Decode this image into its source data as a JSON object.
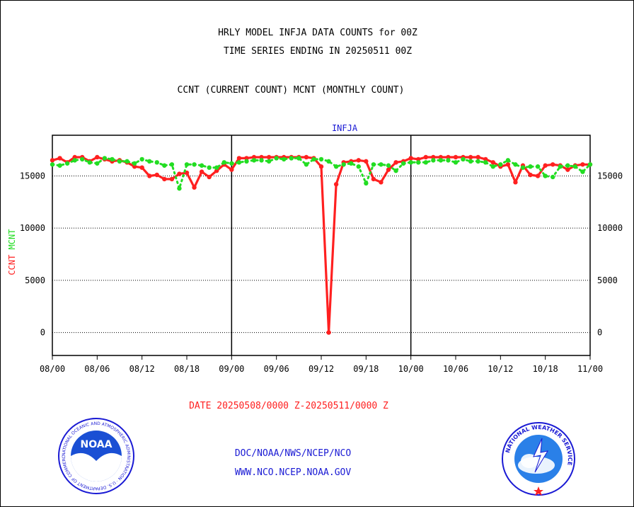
{
  "header": {
    "title1": "HRLY MODEL INFJA DATA COUNTS for 00Z",
    "title2": "TIME SERIES ENDING IN 20250511 00Z",
    "subtitle": "CCNT (CURRENT COUNT) MCNT (MONTHLY COUNT)"
  },
  "footer": {
    "date_range": "DATE 20250508/0000 Z-20250511/0000 Z",
    "org": "DOC/NOAA/NWS/NCEP/NCO",
    "url": "WWW.NCO.NCEP.NOAA.GOV"
  },
  "logos": {
    "left": {
      "name": "noaa-logo",
      "text": "NOAA",
      "ring_text": "NATIONAL OCEANIC AND ATMOSPHERIC ADMINISTRATION · U.S. DEPARTMENT OF COMMERCE"
    },
    "right": {
      "name": "nws-logo",
      "ring_text": "NATIONAL WEATHER SERVICE"
    }
  },
  "colors": {
    "ccnt": "#ff2020",
    "mcnt": "#22dd22",
    "label": "#1a1ad4",
    "axis": "#000000"
  },
  "chart_data": {
    "type": "line",
    "title": "INFJA",
    "ylabel_parts": [
      {
        "text": "CCNT",
        "color": "#ff2020"
      },
      {
        "text": "MCNT",
        "color": "#22dd22"
      }
    ],
    "x_ticks": [
      "08/00",
      "08/06",
      "08/12",
      "08/18",
      "09/00",
      "09/06",
      "09/12",
      "09/18",
      "10/00",
      "10/06",
      "10/12",
      "10/18",
      "11/00"
    ],
    "x_range": [
      0,
      72
    ],
    "y_ticks": [
      0,
      5000,
      10000,
      15000
    ],
    "ylim": [
      -2200,
      18900
    ],
    "grid": true,
    "series": [
      {
        "name": "CCNT",
        "color": "#ff2020",
        "x": [
          0,
          1,
          2,
          3,
          4,
          5,
          6,
          7,
          8,
          9,
          10,
          11,
          12,
          13,
          14,
          15,
          16,
          17,
          18,
          19,
          20,
          21,
          22,
          23,
          24,
          25,
          26,
          27,
          28,
          29,
          30,
          31,
          32,
          33,
          34,
          35,
          36,
          37,
          38,
          39,
          40,
          41,
          42,
          43,
          44,
          45,
          46,
          47,
          48,
          49,
          50,
          51,
          52,
          53,
          54,
          55,
          56,
          57,
          58,
          59,
          60,
          61,
          62,
          63,
          64,
          65,
          66,
          67,
          68,
          69,
          70,
          71,
          72
        ],
        "values": [
          16500,
          16700,
          16300,
          16800,
          16800,
          16400,
          16800,
          16600,
          16400,
          16500,
          16300,
          15900,
          15800,
          15000,
          15100,
          14700,
          14700,
          15200,
          15300,
          13900,
          15400,
          14900,
          15500,
          16100,
          15600,
          16700,
          16700,
          16800,
          16800,
          16800,
          16800,
          16800,
          16800,
          16800,
          16800,
          16700,
          15900,
          0,
          14200,
          16300,
          16400,
          16500,
          16400,
          14700,
          14400,
          15600,
          16300,
          16400,
          16700,
          16600,
          16800,
          16800,
          16800,
          16800,
          16800,
          16800,
          16800,
          16800,
          16600,
          16300,
          15900,
          16100,
          14400,
          16000,
          15100,
          15000,
          16000,
          16100,
          16000,
          15600,
          16000,
          16100,
          16100
        ]
      },
      {
        "name": "MCNT",
        "color": "#22dd22",
        "x": [
          0,
          1,
          2,
          3,
          4,
          5,
          6,
          7,
          8,
          9,
          10,
          11,
          12,
          13,
          14,
          15,
          16,
          17,
          18,
          19,
          20,
          21,
          22,
          23,
          24,
          25,
          26,
          27,
          28,
          29,
          30,
          31,
          32,
          33,
          34,
          35,
          36,
          37,
          38,
          39,
          40,
          41,
          42,
          43,
          44,
          45,
          46,
          47,
          48,
          49,
          50,
          51,
          52,
          53,
          54,
          55,
          56,
          57,
          58,
          59,
          60,
          61,
          62,
          63,
          64,
          65,
          66,
          67,
          68,
          69,
          70,
          71,
          72
        ],
        "values": [
          16100,
          16000,
          16200,
          16500,
          16600,
          16300,
          16200,
          16700,
          16600,
          16400,
          16400,
          16200,
          16600,
          16400,
          16300,
          16000,
          16100,
          13800,
          16100,
          16100,
          16000,
          15800,
          15800,
          16300,
          16200,
          16300,
          16400,
          16500,
          16500,
          16400,
          16700,
          16600,
          16700,
          16700,
          16100,
          16600,
          16600,
          16400,
          15900,
          16100,
          16200,
          15900,
          14300,
          16100,
          16100,
          16000,
          15500,
          16200,
          16300,
          16300,
          16300,
          16500,
          16500,
          16500,
          16300,
          16600,
          16400,
          16400,
          16300,
          15900,
          16100,
          16500,
          16100,
          15800,
          15900,
          15900,
          15000,
          14900,
          15900,
          16000,
          15900,
          15400,
          16100
        ]
      }
    ]
  }
}
